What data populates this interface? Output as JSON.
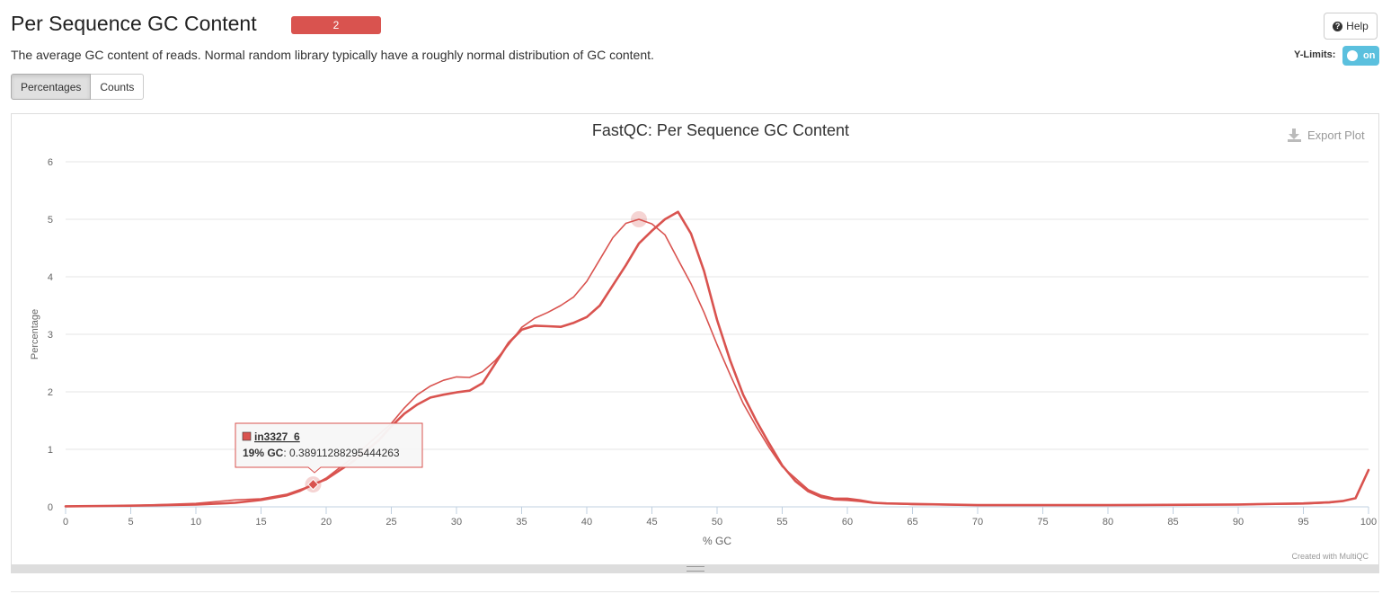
{
  "header": {
    "title": "Per Sequence GC Content",
    "badge_count": "2",
    "help_label": "Help",
    "description": "The average GC content of reads. Normal random library typically have a roughly normal distribution of GC content.",
    "ylimits_label": "Y-Limits:",
    "ylimits_toggle": "on"
  },
  "tabs": [
    {
      "label": "Percentages",
      "active": true
    },
    {
      "label": "Counts",
      "active": false
    }
  ],
  "plot": {
    "export_label": "Export Plot",
    "credit": "Created with MultiQC",
    "tooltip": {
      "sample": "in3327_6",
      "x_label": "19% GC",
      "value": "0.38911288295444263"
    }
  },
  "colors": {
    "series": "#d9534f",
    "badge": "#d9534f",
    "toggle": "#5bc0de"
  },
  "chart_data": {
    "type": "line",
    "title": "FastQC: Per Sequence GC Content",
    "xlabel": "% GC",
    "ylabel": "Percentage",
    "xlim": [
      0,
      100
    ],
    "ylim": [
      0,
      6
    ],
    "x_ticks": [
      0,
      5,
      10,
      15,
      20,
      25,
      30,
      35,
      40,
      45,
      50,
      55,
      60,
      65,
      70,
      75,
      80,
      85,
      90,
      95,
      100
    ],
    "y_ticks": [
      0,
      1,
      2,
      3,
      4,
      5,
      6
    ],
    "grid": true,
    "legend": "none",
    "series": [
      {
        "name": "in3327_6",
        "color": "#d9534f",
        "width": 2.6,
        "points": [
          [
            0,
            0.01
          ],
          [
            5,
            0.02
          ],
          [
            10,
            0.04
          ],
          [
            13,
            0.07
          ],
          [
            15,
            0.12
          ],
          [
            17,
            0.2
          ],
          [
            18,
            0.28
          ],
          [
            19,
            0.389
          ],
          [
            20,
            0.48
          ],
          [
            22,
            0.78
          ],
          [
            24,
            1.15
          ],
          [
            25,
            1.4
          ],
          [
            26,
            1.62
          ],
          [
            27,
            1.78
          ],
          [
            28,
            1.9
          ],
          [
            29,
            1.95
          ],
          [
            30,
            1.99
          ],
          [
            31,
            2.02
          ],
          [
            32,
            2.15
          ],
          [
            33,
            2.5
          ],
          [
            34,
            2.85
          ],
          [
            35,
            3.08
          ],
          [
            36,
            3.15
          ],
          [
            37,
            3.14
          ],
          [
            38,
            3.13
          ],
          [
            39,
            3.2
          ],
          [
            40,
            3.3
          ],
          [
            41,
            3.5
          ],
          [
            42,
            3.85
          ],
          [
            43,
            4.2
          ],
          [
            44,
            4.58
          ],
          [
            45,
            4.8
          ],
          [
            46,
            5.0
          ],
          [
            47,
            5.13
          ],
          [
            48,
            4.75
          ],
          [
            49,
            4.1
          ],
          [
            50,
            3.25
          ],
          [
            51,
            2.55
          ],
          [
            52,
            1.95
          ],
          [
            53,
            1.5
          ],
          [
            54,
            1.1
          ],
          [
            55,
            0.72
          ],
          [
            56,
            0.45
          ],
          [
            57,
            0.27
          ],
          [
            58,
            0.17
          ],
          [
            59,
            0.13
          ],
          [
            60,
            0.12
          ],
          [
            61,
            0.1
          ],
          [
            62,
            0.07
          ],
          [
            63,
            0.06
          ],
          [
            65,
            0.05
          ],
          [
            70,
            0.03
          ],
          [
            80,
            0.03
          ],
          [
            90,
            0.04
          ],
          [
            95,
            0.06
          ],
          [
            97,
            0.08
          ],
          [
            98,
            0.1
          ],
          [
            99,
            0.15
          ],
          [
            100,
            0.64
          ]
        ]
      },
      {
        "name": "",
        "color": "#d9534f",
        "width": 1.6,
        "points": [
          [
            0,
            0.01
          ],
          [
            5,
            0.02
          ],
          [
            10,
            0.06
          ],
          [
            13,
            0.12
          ],
          [
            15,
            0.14
          ],
          [
            17,
            0.22
          ],
          [
            18,
            0.3
          ],
          [
            19,
            0.38
          ],
          [
            20,
            0.5
          ],
          [
            22,
            0.85
          ],
          [
            24,
            1.25
          ],
          [
            25,
            1.45
          ],
          [
            26,
            1.72
          ],
          [
            27,
            1.95
          ],
          [
            28,
            2.1
          ],
          [
            29,
            2.2
          ],
          [
            30,
            2.26
          ],
          [
            31,
            2.25
          ],
          [
            32,
            2.35
          ],
          [
            33,
            2.55
          ],
          [
            34,
            2.82
          ],
          [
            35,
            3.12
          ],
          [
            36,
            3.28
          ],
          [
            37,
            3.38
          ],
          [
            38,
            3.5
          ],
          [
            39,
            3.65
          ],
          [
            40,
            3.92
          ],
          [
            41,
            4.3
          ],
          [
            42,
            4.68
          ],
          [
            43,
            4.93
          ],
          [
            44,
            5.0
          ],
          [
            45,
            4.92
          ],
          [
            46,
            4.73
          ],
          [
            47,
            4.3
          ],
          [
            48,
            3.88
          ],
          [
            49,
            3.38
          ],
          [
            50,
            2.82
          ],
          [
            51,
            2.3
          ],
          [
            52,
            1.8
          ],
          [
            53,
            1.4
          ],
          [
            54,
            1.03
          ],
          [
            55,
            0.7
          ],
          [
            56,
            0.5
          ],
          [
            57,
            0.3
          ],
          [
            58,
            0.2
          ],
          [
            59,
            0.15
          ],
          [
            60,
            0.15
          ],
          [
            61,
            0.12
          ],
          [
            62,
            0.08
          ],
          [
            63,
            0.06
          ],
          [
            65,
            0.04
          ],
          [
            70,
            0.03
          ],
          [
            80,
            0.03
          ],
          [
            90,
            0.04
          ],
          [
            95,
            0.05
          ],
          [
            97,
            0.07
          ],
          [
            98,
            0.1
          ],
          [
            99,
            0.15
          ],
          [
            100,
            0.64
          ]
        ]
      }
    ],
    "highlight_points": [
      {
        "series": 0,
        "x": 19,
        "y": 0.389
      },
      {
        "series": 1,
        "x": 44,
        "y": 5.0
      }
    ]
  }
}
